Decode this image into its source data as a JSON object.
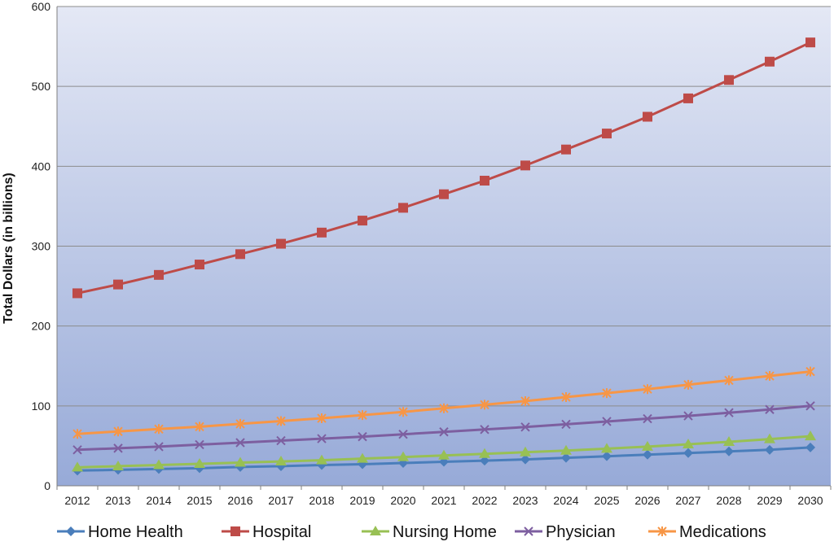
{
  "chart_data": {
    "type": "line",
    "title": "",
    "xlabel": "",
    "ylabel": "Total Dollars (in billions)",
    "ylim": [
      0,
      600
    ],
    "yticks": [
      0,
      100,
      200,
      300,
      400,
      500,
      600
    ],
    "grid": true,
    "legend_position": "bottom",
    "x": [
      "2012",
      "2013",
      "2014",
      "2015",
      "2016",
      "2017",
      "2018",
      "2019",
      "2020",
      "2021",
      "2022",
      "2023",
      "2024",
      "2025",
      "2026",
      "2027",
      "2028",
      "2029",
      "2030"
    ],
    "series": [
      {
        "name": "Home Health",
        "color": "#4a7ebb",
        "marker": "diamond",
        "values": [
          19,
          20,
          21,
          22,
          23.5,
          24.5,
          26,
          27,
          28.5,
          30,
          31.5,
          33,
          35,
          37,
          39,
          41,
          43,
          45,
          48
        ]
      },
      {
        "name": "Hospital",
        "color": "#be4b48",
        "marker": "square",
        "values": [
          241,
          252,
          264,
          277,
          290,
          303,
          317,
          332,
          348,
          365,
          382,
          401,
          421,
          441,
          462,
          485,
          508,
          531,
          555
        ]
      },
      {
        "name": "Nursing Home",
        "color": "#98c054",
        "marker": "triangle",
        "values": [
          23,
          24.5,
          26,
          27.5,
          29,
          30.5,
          32,
          34,
          36,
          38,
          40,
          42,
          44,
          46.5,
          49,
          52,
          55,
          58.5,
          62
        ]
      },
      {
        "name": "Physician",
        "color": "#7d5fa0",
        "marker": "x",
        "values": [
          45,
          47,
          49,
          51.5,
          54,
          56.5,
          59,
          61.5,
          64.5,
          67.5,
          70.5,
          73.5,
          77,
          80.5,
          84,
          87.5,
          91.5,
          95.5,
          100
        ]
      },
      {
        "name": "Medications",
        "color": "#f79646",
        "marker": "star",
        "values": [
          65,
          68,
          71,
          74,
          77.5,
          81,
          84.5,
          88.5,
          92.5,
          97,
          101.5,
          106,
          111,
          116,
          121,
          126.5,
          132,
          137.5,
          143
        ]
      }
    ]
  }
}
